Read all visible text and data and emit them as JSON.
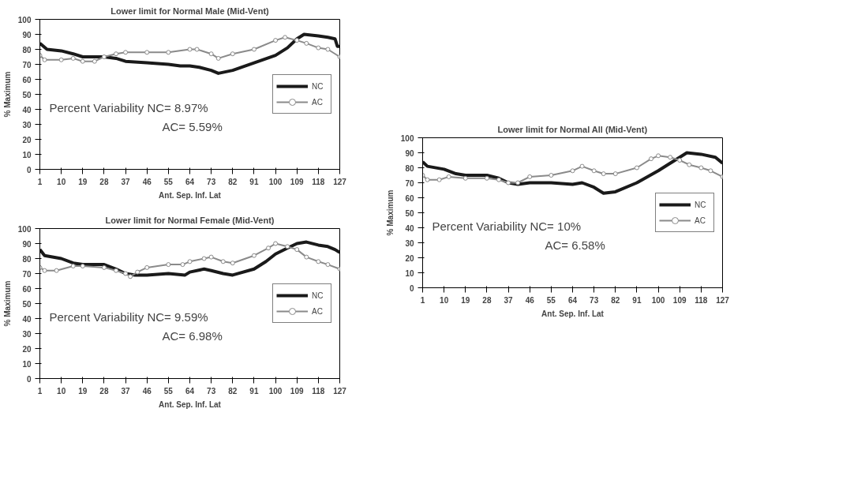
{
  "chart_data": [
    {
      "type": "line",
      "title": "Lower limit for Normal Male (Mid-Vent)",
      "xlabel": "Ant. Sep. Inf. Lat",
      "ylabel": "% Maximum",
      "xlim": [
        1,
        127
      ],
      "xticks": [
        1,
        10,
        19,
        28,
        37,
        46,
        55,
        64,
        73,
        82,
        91,
        100,
        109,
        118,
        127
      ],
      "ylim": [
        0,
        100
      ],
      "yticks": [
        0,
        10,
        20,
        30,
        40,
        50,
        60,
        70,
        80,
        90,
        100
      ],
      "grid": false,
      "legend": "right",
      "annotations": [
        "Percent Variability NC= 8.97%",
        "AC= 5.59%"
      ],
      "series": [
        {
          "name": "NC",
          "color": "#1a1a1a",
          "marker": "none",
          "x": [
            1,
            4,
            10,
            15,
            19,
            24,
            28,
            33,
            37,
            46,
            55,
            60,
            64,
            68,
            73,
            76,
            82,
            91,
            100,
            105,
            109,
            112,
            118,
            122,
            125,
            126,
            127
          ],
          "values": [
            84,
            80,
            79,
            77,
            75,
            75,
            75,
            74,
            72,
            71,
            70,
            69,
            69,
            68,
            66,
            64,
            66,
            71,
            76,
            81,
            87,
            90,
            89,
            88,
            87,
            82,
            82
          ]
        },
        {
          "name": "AC",
          "color": "#8a8a8a",
          "marker": "circle",
          "x": [
            1,
            3,
            10,
            15,
            19,
            24,
            28,
            33,
            37,
            46,
            55,
            64,
            67,
            73,
            76,
            82,
            91,
            100,
            104,
            109,
            113,
            118,
            122,
            127
          ],
          "values": [
            76,
            73,
            73,
            74,
            72,
            72,
            75,
            77,
            78,
            78,
            78,
            80,
            80,
            77,
            74,
            77,
            80,
            86,
            88,
            86,
            84,
            81,
            80,
            75
          ]
        }
      ]
    },
    {
      "type": "line",
      "title": "Lower limit for Normal Female (Mid-Vent)",
      "xlabel": "Ant. Sep. Inf. Lat",
      "ylabel": "% Maximum",
      "xlim": [
        1,
        127
      ],
      "xticks": [
        1,
        10,
        19,
        28,
        37,
        46,
        55,
        64,
        73,
        82,
        91,
        100,
        109,
        118,
        127
      ],
      "ylim": [
        0,
        100
      ],
      "yticks": [
        0,
        10,
        20,
        30,
        40,
        50,
        60,
        70,
        80,
        90,
        100
      ],
      "grid": false,
      "legend": "right",
      "annotations": [
        "Percent Variability NC= 9.59%",
        "AC= 6.98%"
      ],
      "series": [
        {
          "name": "NC",
          "color": "#1a1a1a",
          "marker": "none",
          "x": [
            1,
            3,
            10,
            15,
            19,
            28,
            33,
            37,
            41,
            46,
            55,
            62,
            64,
            70,
            73,
            78,
            82,
            91,
            96,
            100,
            105,
            109,
            113,
            118,
            122,
            125,
            127
          ],
          "values": [
            86,
            82,
            80,
            77,
            76,
            76,
            73,
            70,
            69,
            69,
            70,
            69,
            71,
            73,
            72,
            70,
            69,
            73,
            78,
            83,
            87,
            90,
            91,
            89,
            88,
            86,
            84
          ]
        },
        {
          "name": "AC",
          "color": "#8a8a8a",
          "marker": "circle",
          "x": [
            1,
            3,
            8,
            15,
            19,
            28,
            33,
            37,
            39,
            42,
            46,
            55,
            61,
            64,
            70,
            73,
            78,
            82,
            91,
            97,
            100,
            105,
            109,
            113,
            118,
            122,
            127
          ],
          "values": [
            74,
            72,
            72,
            75,
            75,
            74,
            72,
            70,
            68,
            71,
            74,
            76,
            76,
            78,
            80,
            81,
            78,
            77,
            82,
            87,
            90,
            88,
            86,
            81,
            78,
            76,
            73
          ]
        }
      ]
    },
    {
      "type": "line",
      "title": "Lower limit for Normal All (Mid-Vent)",
      "xlabel": "Ant. Sep. Inf. Lat",
      "ylabel": "% Maximum",
      "xlim": [
        1,
        127
      ],
      "xticks": [
        1,
        10,
        19,
        28,
        37,
        46,
        55,
        64,
        73,
        82,
        91,
        100,
        109,
        118,
        127
      ],
      "ylim": [
        0,
        100
      ],
      "yticks": [
        0,
        10,
        20,
        30,
        40,
        50,
        60,
        70,
        80,
        90,
        100
      ],
      "grid": false,
      "legend": "right",
      "annotations": [
        "Percent Variability NC= 10%",
        "AC= 6.58%"
      ],
      "series": [
        {
          "name": "NC",
          "color": "#1a1a1a",
          "marker": "none",
          "x": [
            1,
            3,
            10,
            15,
            19,
            28,
            33,
            37,
            41,
            46,
            55,
            64,
            68,
            73,
            77,
            82,
            91,
            100,
            105,
            109,
            112,
            118,
            124,
            127
          ],
          "values": [
            84,
            81,
            79,
            76,
            75,
            75,
            73,
            70,
            69,
            70,
            70,
            69,
            70,
            67,
            63,
            64,
            70,
            78,
            83,
            87,
            90,
            89,
            87,
            83
          ]
        },
        {
          "name": "AC",
          "color": "#8a8a8a",
          "marker": "circle",
          "x": [
            1,
            3,
            8,
            12,
            19,
            28,
            33,
            37,
            41,
            46,
            55,
            64,
            68,
            73,
            77,
            82,
            91,
            97,
            100,
            105,
            109,
            113,
            118,
            122,
            127
          ],
          "values": [
            75,
            72,
            72,
            74,
            73,
            73,
            72,
            70,
            70,
            74,
            75,
            78,
            81,
            78,
            76,
            76,
            80,
            86,
            88,
            87,
            85,
            82,
            80,
            78,
            74
          ]
        }
      ]
    }
  ]
}
